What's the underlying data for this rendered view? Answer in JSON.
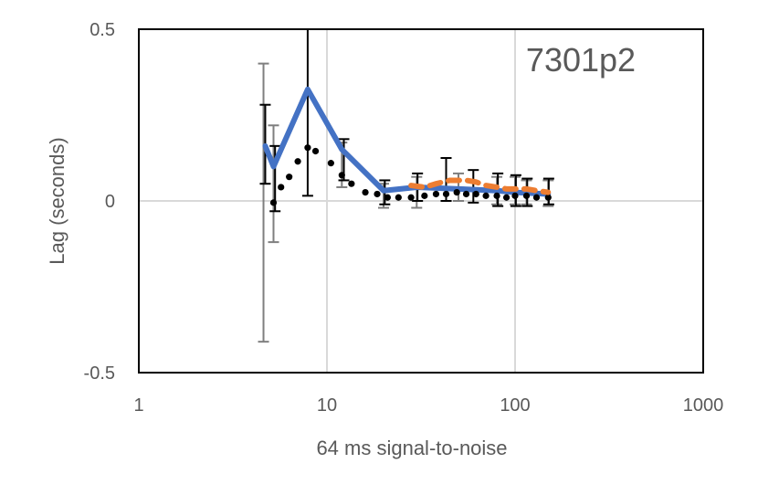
{
  "chart_data": {
    "type": "scatter",
    "x_scale": "log",
    "xlim": [
      1,
      1000
    ],
    "ylim": [
      -0.5,
      0.5
    ],
    "x_ticks": [
      1,
      10,
      100,
      1000
    ],
    "x_tick_labels": [
      "1",
      "10",
      "100",
      "1000"
    ],
    "y_ticks": [
      -0.5,
      0,
      0.5
    ],
    "y_tick_labels": [
      "-0.5",
      "0",
      "0.5"
    ],
    "xlabel": "64 ms signal-to-noise",
    "ylabel": "Lag (seconds)",
    "annotation": "7301p2",
    "grid": true,
    "legend": "none",
    "series": [
      {
        "style": "solid",
        "color": "#4472C4",
        "x": [
          4.7,
          5.2,
          7.9,
          12,
          20,
          30,
          50,
          80,
          100,
          150
        ],
        "y": [
          0.16,
          0.1,
          0.325,
          0.15,
          0.03,
          0.04,
          0.035,
          0.03,
          0.025,
          0.02
        ]
      },
      {
        "style": "dotted",
        "color": "#000000",
        "x": [
          5.2,
          5.7,
          6.3,
          7.0,
          7.9,
          8.7,
          10.5,
          12,
          13.5,
          16,
          18.5,
          21,
          24,
          28,
          33,
          38,
          43,
          49,
          55,
          62,
          70,
          80,
          90,
          100,
          115,
          130,
          150
        ],
        "y": [
          -0.005,
          0.04,
          0.07,
          0.115,
          0.155,
          0.145,
          0.11,
          0.075,
          0.05,
          0.025,
          0.02,
          0.01,
          0.01,
          0.01,
          0.015,
          0.02,
          0.02,
          0.025,
          0.02,
          0.02,
          0.015,
          0.015,
          0.01,
          0.015,
          0.015,
          0.01,
          0.01
        ]
      },
      {
        "style": "dashed",
        "color": "#ED7D31",
        "x": [
          28,
          33,
          38,
          45,
          55,
          62,
          70,
          80,
          90,
          100,
          115,
          130,
          150
        ],
        "y": [
          0.045,
          0.04,
          0.05,
          0.06,
          0.06,
          0.055,
          0.045,
          0.04,
          0.035,
          0.035,
          0.035,
          0.03,
          0.025
        ]
      }
    ],
    "error_bars": [
      {
        "x": 4.6,
        "low": -0.41,
        "high": 0.4,
        "color": "#7F7F7F"
      },
      {
        "x": 4.7,
        "low": 0.05,
        "high": 0.28,
        "color": "#000000"
      },
      {
        "x": 5.2,
        "low": -0.12,
        "high": 0.22,
        "color": "#7F7F7F"
      },
      {
        "x": 5.3,
        "low": -0.03,
        "high": 0.16,
        "color": "#000000"
      },
      {
        "x": 7.9,
        "low": 0.015,
        "high": 0.5,
        "color": "#000000"
      },
      {
        "x": 12,
        "low": 0.04,
        "high": 0.17,
        "color": "#7F7F7F"
      },
      {
        "x": 12.3,
        "low": 0.06,
        "high": 0.18,
        "color": "#000000"
      },
      {
        "x": 20,
        "low": -0.02,
        "high": 0.05,
        "color": "#7F7F7F"
      },
      {
        "x": 20.3,
        "low": -0.01,
        "high": 0.06,
        "color": "#000000"
      },
      {
        "x": 30,
        "low": -0.02,
        "high": 0.07,
        "color": "#7F7F7F"
      },
      {
        "x": 30.3,
        "low": 0.0,
        "high": 0.08,
        "color": "#000000"
      },
      {
        "x": 43,
        "low": 0.0,
        "high": 0.125,
        "color": "#000000"
      },
      {
        "x": 50,
        "low": 0.0,
        "high": 0.08,
        "color": "#7F7F7F"
      },
      {
        "x": 60,
        "low": -0.005,
        "high": 0.09,
        "color": "#000000"
      },
      {
        "x": 80,
        "low": -0.01,
        "high": 0.07,
        "color": "#7F7F7F"
      },
      {
        "x": 81,
        "low": -0.015,
        "high": 0.08,
        "color": "#000000"
      },
      {
        "x": 100,
        "low": -0.01,
        "high": 0.07,
        "color": "#7F7F7F"
      },
      {
        "x": 101,
        "low": -0.015,
        "high": 0.075,
        "color": "#000000"
      },
      {
        "x": 115,
        "low": -0.01,
        "high": 0.06,
        "color": "#7F7F7F"
      },
      {
        "x": 116,
        "low": -0.015,
        "high": 0.065,
        "color": "#000000"
      },
      {
        "x": 150,
        "low": -0.015,
        "high": 0.06,
        "color": "#7F7F7F"
      },
      {
        "x": 151,
        "low": -0.01,
        "high": 0.065,
        "color": "#000000"
      }
    ]
  }
}
